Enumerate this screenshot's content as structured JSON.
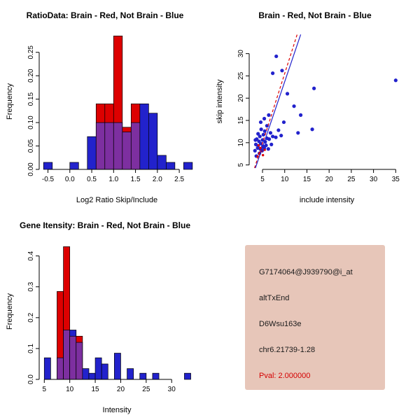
{
  "colors": {
    "blue": "#2222CC",
    "red": "#DD0000",
    "overlap": "#7D2FA0",
    "axis": "#000000",
    "background": "#FFFFFF"
  },
  "chart_data": [
    {
      "type": "bar",
      "subtype": "overlaid-histogram",
      "title": "RatioData: Brain - Red, Not Brain - Blue",
      "xlabel": "Log2 Ratio Skip/Include",
      "ylabel": "Frequency",
      "xlim": [
        -0.7,
        2.85
      ],
      "ylim": [
        0,
        0.29
      ],
      "xticks": [
        -0.5,
        0,
        0.5,
        1,
        1.5,
        2,
        2.5
      ],
      "xtick_labels": [
        "-0.5",
        "0.0",
        "0.5",
        "1.0",
        "1.5",
        "2.0",
        "2.5"
      ],
      "yticks": [
        0,
        0.05,
        0.1,
        0.15,
        0.2,
        0.25
      ],
      "ytick_labels": [
        "0.00",
        "0.05",
        "0.10",
        "0.15",
        "0.20",
        "0.25"
      ],
      "grid": false,
      "bin_start": -0.6,
      "bin_width": 0.2,
      "series": [
        {
          "name": "Not Brain",
          "color_key": "blue",
          "values": [
            0.015,
            0,
            0,
            0.015,
            0,
            0.07,
            0.1,
            0.1,
            0.1,
            0.08,
            0.1,
            0.14,
            0.12,
            0.03,
            0.015,
            0,
            0.015
          ]
        },
        {
          "name": "Brain",
          "color_key": "red",
          "values": [
            0,
            0,
            0,
            0,
            0,
            0,
            0.14,
            0.14,
            0.285,
            0.09,
            0.14,
            0,
            0,
            0,
            0,
            0,
            0
          ]
        }
      ],
      "legend_note": "Brain - Red, Not Brain - Blue"
    },
    {
      "type": "scatter",
      "title": "Brain - Red, Not Brain - Blue",
      "xlabel": "include intensity",
      "ylabel": "skip intensity",
      "xlim": [
        2,
        37
      ],
      "ylim": [
        4,
        34.5
      ],
      "xticks": [
        5,
        10,
        15,
        20,
        25,
        30,
        35
      ],
      "xtick_labels": [
        "5",
        "10",
        "15",
        "20",
        "25",
        "30",
        "35"
      ],
      "yticks": [
        5,
        10,
        15,
        20,
        25,
        30
      ],
      "ytick_labels": [
        "5",
        "10",
        "15",
        "20",
        "25",
        "30"
      ],
      "grid": false,
      "series": [
        {
          "name": "Not Brain",
          "color_key": "blue",
          "size": 2.6,
          "points": [
            [
              3.3,
              8.2
            ],
            [
              3.5,
              9.6
            ],
            [
              3.6,
              7.0
            ],
            [
              3.7,
              10.8
            ],
            [
              3.9,
              8.8
            ],
            [
              4.0,
              9.3
            ],
            [
              4.0,
              12.0
            ],
            [
              4.2,
              10.3
            ],
            [
              4.3,
              7.6
            ],
            [
              4.4,
              11.4
            ],
            [
              4.5,
              8.6
            ],
            [
              4.6,
              9.8
            ],
            [
              4.7,
              13.0
            ],
            [
              4.9,
              8.2
            ],
            [
              5.0,
              10.6
            ],
            [
              5.1,
              9.2
            ],
            [
              5.2,
              11.8
            ],
            [
              5.4,
              8.8
            ],
            [
              5.5,
              12.6
            ],
            [
              5.6,
              10.2
            ],
            [
              5.8,
              9.4
            ],
            [
              6.0,
              11.0
            ],
            [
              6.0,
              13.8
            ],
            [
              6.3,
              8.6
            ],
            [
              6.5,
              10.8
            ],
            [
              6.8,
              12.2
            ],
            [
              7.0,
              9.6
            ],
            [
              7.3,
              11.4
            ],
            [
              4.6,
              14.6
            ],
            [
              5.4,
              15.4
            ],
            [
              6.4,
              16.2
            ],
            [
              3.4,
              10.6
            ],
            [
              8.0,
              11.2
            ],
            [
              8.6,
              12.8
            ],
            [
              9.2,
              11.6
            ],
            [
              9.8,
              14.6
            ],
            [
              13.0,
              12.2
            ],
            [
              16.2,
              13.0
            ],
            [
              13.6,
              16.2
            ],
            [
              12.1,
              18.2
            ],
            [
              10.6,
              21.0
            ],
            [
              16.6,
              22.2
            ],
            [
              7.3,
              25.6
            ],
            [
              8.1,
              29.4
            ],
            [
              9.4,
              26.2
            ],
            [
              35.0,
              24.0
            ]
          ]
        },
        {
          "name": "Brain",
          "color_key": "red",
          "size": 1.7,
          "points": [
            [
              3.9,
              6.9
            ],
            [
              4.3,
              7.5
            ],
            [
              4.7,
              8.1
            ],
            [
              5.1,
              7.2
            ],
            [
              4.5,
              8.8
            ],
            [
              5.5,
              8.4
            ],
            [
              4.1,
              9.4
            ]
          ]
        }
      ],
      "lines": [
        {
          "name": "brain-fit",
          "color_key": "red",
          "dash": "4,3",
          "x1": 3.2,
          "y1": 4.3,
          "x2": 12.8,
          "y2": 34.3
        },
        {
          "name": "notbrain-fit",
          "color_key": "blue",
          "dash": "",
          "x1": 3.4,
          "y1": 4.3,
          "x2": 13.6,
          "y2": 34.3
        }
      ]
    },
    {
      "type": "bar",
      "subtype": "overlaid-histogram",
      "title": "Gene Itensity: Brain - Red, Not Brain - Blue",
      "xlabel": "Intensity",
      "ylabel": "Frequency",
      "xlim": [
        4,
        34.5
      ],
      "ylim": [
        0,
        0.44
      ],
      "xticks": [
        5,
        10,
        15,
        20,
        25,
        30
      ],
      "xtick_labels": [
        "5",
        "10",
        "15",
        "20",
        "25",
        "30"
      ],
      "yticks": [
        0,
        0.1,
        0.2,
        0.3,
        0.4
      ],
      "ytick_labels": [
        "0.0",
        "0.1",
        "0.2",
        "0.3",
        "0.4"
      ],
      "grid": false,
      "bin_start": 5,
      "bin_width": 1.25,
      "series": [
        {
          "name": "Not Brain",
          "color_key": "blue",
          "values": [
            0.07,
            0,
            0.07,
            0.16,
            0.16,
            0.12,
            0.035,
            0.02,
            0.07,
            0.05,
            0,
            0.085,
            0,
            0.035,
            0,
            0.02,
            0,
            0.02,
            0,
            0,
            0,
            0,
            0.02
          ]
        },
        {
          "name": "Brain",
          "color_key": "red",
          "values": [
            0,
            0,
            0.285,
            0.43,
            0.14,
            0.14,
            0,
            0,
            0,
            0,
            0,
            0,
            0,
            0,
            0,
            0,
            0,
            0,
            0,
            0,
            0,
            0,
            0
          ]
        }
      ]
    }
  ],
  "info_box": {
    "bg": "#E7C6B9",
    "lines": [
      "G7174064@J939790@i_at",
      "altTxEnd",
      "D6Wsu163e",
      "chr6.21739-1.28"
    ],
    "pval": "Pval: 2.000000",
    "pval_color": "#D40000"
  }
}
